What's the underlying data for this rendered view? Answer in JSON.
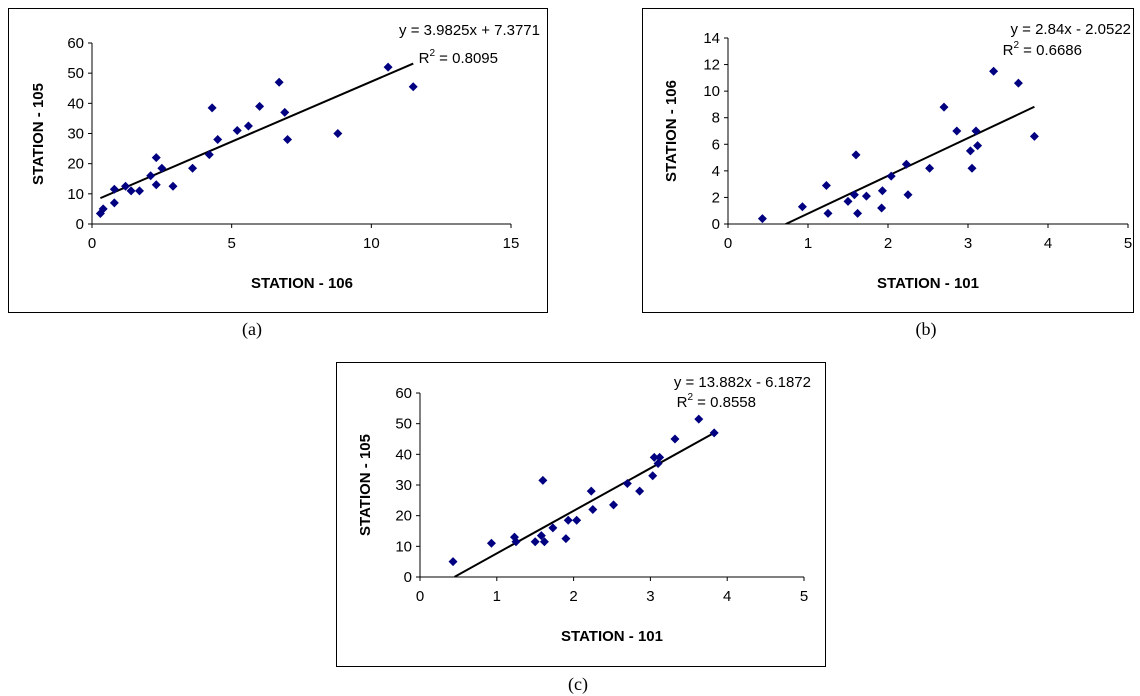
{
  "chart_data": [
    {
      "id": "a",
      "type": "scatter",
      "caption": "(a)",
      "xlabel": "STATION - 106",
      "ylabel": "STATION - 105",
      "xlim": [
        0,
        15
      ],
      "ylim": [
        0,
        60
      ],
      "xticks": [
        "0",
        "5",
        "10",
        "15"
      ],
      "yticks": [
        "0",
        "10",
        "20",
        "30",
        "40",
        "50",
        "60"
      ],
      "equation": "y = 3.9825x + 7.3771",
      "r2_label": "R",
      "r2_sup": "2",
      "r2_value": " = 0.8095",
      "trendline": {
        "slope": 3.9825,
        "intercept": 7.3771,
        "x_range": [
          0.3,
          11.5
        ]
      },
      "marker_color": "#000080",
      "points": [
        [
          0.3,
          3.5
        ],
        [
          0.4,
          5
        ],
        [
          0.8,
          7
        ],
        [
          0.8,
          11.5
        ],
        [
          1.2,
          12.5
        ],
        [
          1.4,
          11
        ],
        [
          1.7,
          11
        ],
        [
          2.1,
          16
        ],
        [
          2.3,
          13
        ],
        [
          2.3,
          22
        ],
        [
          2.5,
          18.5
        ],
        [
          2.9,
          12.5
        ],
        [
          3.6,
          18.5
        ],
        [
          4.2,
          23
        ],
        [
          4.3,
          38.5
        ],
        [
          4.5,
          28
        ],
        [
          5.2,
          31
        ],
        [
          5.6,
          32.5
        ],
        [
          6.0,
          39
        ],
        [
          6.7,
          47
        ],
        [
          6.9,
          37
        ],
        [
          7.0,
          28
        ],
        [
          8.8,
          30
        ],
        [
          10.6,
          52
        ],
        [
          11.5,
          45.5
        ]
      ]
    },
    {
      "id": "b",
      "type": "scatter",
      "caption": "(b)",
      "xlabel": "STATION - 101",
      "ylabel": "STATION - 106",
      "xlim": [
        0,
        5
      ],
      "ylim": [
        0,
        14
      ],
      "xticks": [
        "0",
        "1",
        "2",
        "3",
        "4",
        "5"
      ],
      "yticks": [
        "0",
        "2",
        "4",
        "6",
        "8",
        "10",
        "12",
        "14"
      ],
      "equation": "y = 2.84x - 2.0522",
      "r2_label": "R",
      "r2_sup": "2",
      "r2_value": " = 0.6686",
      "trendline": {
        "slope": 2.84,
        "intercept": -2.0522,
        "x_range": [
          0.72,
          3.83
        ]
      },
      "marker_color": "#000080",
      "points": [
        [
          0.43,
          0.4
        ],
        [
          0.93,
          1.3
        ],
        [
          1.23,
          2.9
        ],
        [
          1.25,
          0.8
        ],
        [
          1.5,
          1.7
        ],
        [
          1.58,
          2.2
        ],
        [
          1.6,
          5.2
        ],
        [
          1.62,
          0.8
        ],
        [
          1.73,
          2.1
        ],
        [
          1.92,
          1.2
        ],
        [
          1.93,
          2.5
        ],
        [
          2.04,
          3.6
        ],
        [
          2.23,
          4.5
        ],
        [
          2.25,
          2.2
        ],
        [
          2.52,
          4.2
        ],
        [
          2.7,
          8.8
        ],
        [
          2.86,
          7.0
        ],
        [
          3.03,
          5.5
        ],
        [
          3.05,
          4.2
        ],
        [
          3.1,
          7.0
        ],
        [
          3.12,
          5.9
        ],
        [
          3.32,
          11.5
        ],
        [
          3.63,
          10.6
        ],
        [
          3.83,
          6.6
        ]
      ]
    },
    {
      "id": "c",
      "type": "scatter",
      "caption": "(c)",
      "xlabel": "STATION - 101",
      "ylabel": "STATION - 105",
      "xlim": [
        0,
        5
      ],
      "ylim": [
        0,
        60
      ],
      "xticks": [
        "0",
        "1",
        "2",
        "3",
        "4",
        "5"
      ],
      "yticks": [
        "0",
        "10",
        "20",
        "30",
        "40",
        "50",
        "60"
      ],
      "equation": "y = 13.882x - 6.1872",
      "r2_label": "R",
      "r2_sup": "2",
      "r2_value": " = 0.8558",
      "trendline": {
        "slope": 13.882,
        "intercept": -6.1872,
        "x_range": [
          0.45,
          3.83
        ]
      },
      "marker_color": "#000080",
      "points": [
        [
          0.43,
          5
        ],
        [
          0.93,
          11
        ],
        [
          1.23,
          13
        ],
        [
          1.25,
          11.5
        ],
        [
          1.5,
          11.5
        ],
        [
          1.58,
          13.5
        ],
        [
          1.6,
          31.5
        ],
        [
          1.62,
          11.5
        ],
        [
          1.73,
          16
        ],
        [
          1.9,
          12.5
        ],
        [
          1.93,
          18.5
        ],
        [
          2.04,
          18.5
        ],
        [
          2.23,
          28
        ],
        [
          2.25,
          22
        ],
        [
          2.52,
          23.5
        ],
        [
          2.7,
          30.5
        ],
        [
          2.86,
          28
        ],
        [
          3.03,
          33
        ],
        [
          3.05,
          39
        ],
        [
          3.1,
          37
        ],
        [
          3.12,
          39
        ],
        [
          3.32,
          45
        ],
        [
          3.63,
          51.5
        ],
        [
          3.83,
          47
        ]
      ]
    }
  ]
}
